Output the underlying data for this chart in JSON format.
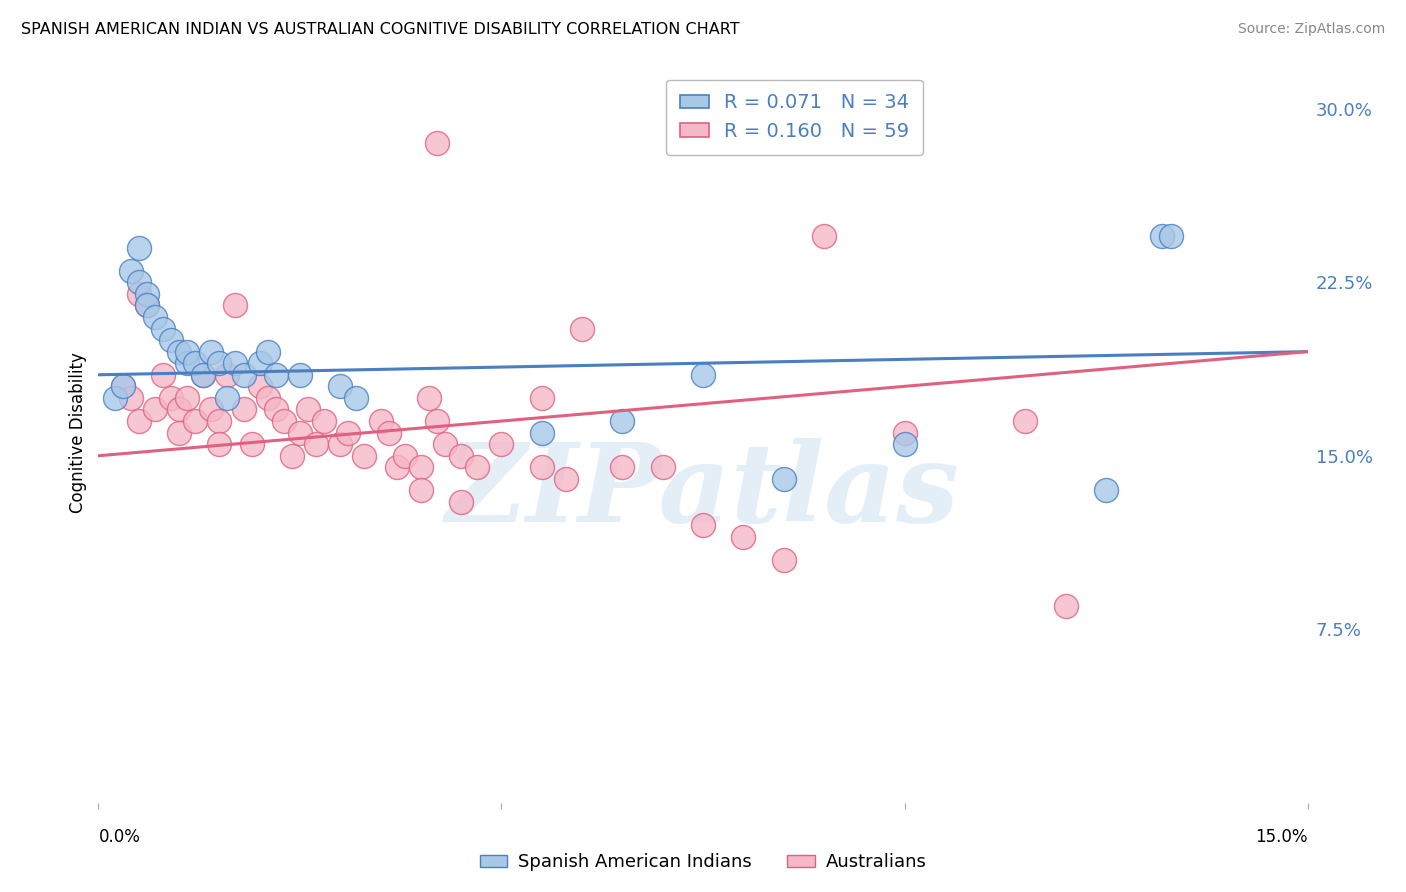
{
  "title": "SPANISH AMERICAN INDIAN VS AUSTRALIAN COGNITIVE DISABILITY CORRELATION CHART",
  "source": "Source: ZipAtlas.com",
  "ylabel": "Cognitive Disability",
  "watermark": "ZIPatlas",
  "xlim": [
    0.0,
    15.0
  ],
  "ylim": [
    0.0,
    32.0
  ],
  "yticks": [
    7.5,
    15.0,
    22.5,
    30.0
  ],
  "blue_R": "0.071",
  "blue_N": "34",
  "pink_R": "0.160",
  "pink_N": "59",
  "blue_color": "#a8c8e8",
  "pink_color": "#f5b8c8",
  "blue_line_color": "#4a7fc0",
  "pink_line_color": "#e06080",
  "grid_color": "#dddddd",
  "background_color": "#ffffff",
  "blue_points_x": [
    0.2,
    0.3,
    0.4,
    0.5,
    0.5,
    0.6,
    0.6,
    0.7,
    0.8,
    0.9,
    1.0,
    1.1,
    1.1,
    1.2,
    1.3,
    1.4,
    1.5,
    1.6,
    1.7,
    1.8,
    2.0,
    2.1,
    2.2,
    2.5,
    3.0,
    3.2,
    5.5,
    6.5,
    7.5,
    8.5,
    10.0,
    12.5,
    13.2,
    13.3
  ],
  "blue_points_y": [
    17.5,
    18.0,
    23.0,
    22.5,
    24.0,
    22.0,
    21.5,
    21.0,
    20.5,
    20.0,
    19.5,
    19.0,
    19.5,
    19.0,
    18.5,
    19.5,
    19.0,
    17.5,
    19.0,
    18.5,
    19.0,
    19.5,
    18.5,
    18.5,
    18.0,
    17.5,
    16.0,
    16.5,
    18.5,
    14.0,
    15.5,
    13.5,
    24.5,
    24.5
  ],
  "pink_points_x": [
    0.3,
    0.4,
    0.5,
    0.5,
    0.6,
    0.7,
    0.8,
    0.9,
    1.0,
    1.0,
    1.1,
    1.2,
    1.3,
    1.4,
    1.5,
    1.5,
    1.6,
    1.7,
    1.8,
    1.9,
    2.0,
    2.1,
    2.2,
    2.3,
    2.4,
    2.5,
    2.6,
    2.7,
    2.8,
    3.0,
    3.1,
    3.3,
    3.5,
    3.6,
    3.7,
    3.8,
    4.0,
    4.0,
    4.1,
    4.2,
    4.3,
    4.5,
    4.5,
    4.7,
    5.0,
    5.5,
    5.5,
    5.8,
    6.0,
    6.5,
    7.0,
    7.5,
    8.0,
    8.5,
    9.0,
    10.0,
    11.5,
    12.0,
    4.2
  ],
  "pink_points_y": [
    18.0,
    17.5,
    22.0,
    16.5,
    21.5,
    17.0,
    18.5,
    17.5,
    17.0,
    16.0,
    17.5,
    16.5,
    18.5,
    17.0,
    16.5,
    15.5,
    18.5,
    21.5,
    17.0,
    15.5,
    18.0,
    17.5,
    17.0,
    16.5,
    15.0,
    16.0,
    17.0,
    15.5,
    16.5,
    15.5,
    16.0,
    15.0,
    16.5,
    16.0,
    14.5,
    15.0,
    14.5,
    13.5,
    17.5,
    16.5,
    15.5,
    15.0,
    13.0,
    14.5,
    15.5,
    17.5,
    14.5,
    14.0,
    20.5,
    14.5,
    14.5,
    12.0,
    11.5,
    10.5,
    24.5,
    16.0,
    16.5,
    8.5,
    28.5
  ],
  "blue_trend": [
    18.5,
    19.5
  ],
  "pink_trend": [
    15.0,
    19.5
  ]
}
